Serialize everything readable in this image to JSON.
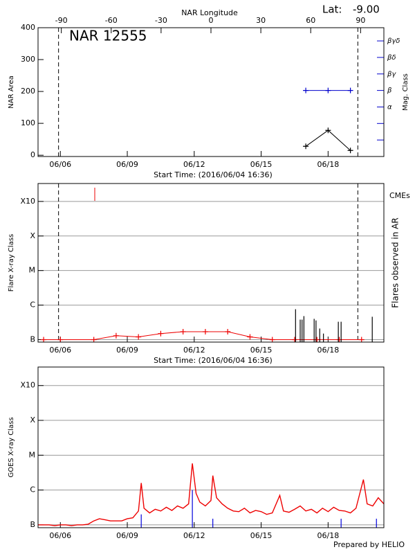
{
  "chart_data": [
    {
      "type": "line",
      "title": "NAR 12555",
      "latitude_label": "Lat:",
      "latitude": {
        "value": -9,
        "label": "-9.00"
      },
      "xlabel": "Start Time: (2016/06/04 16:36)",
      "ylabel": "NAR Area",
      "y2label": "Mag. Class",
      "x2label": "NAR Longitude",
      "xlim": [
        "06/05 00:00",
        "06/20 12:00"
      ],
      "xticks": [
        "06/06",
        "06/09",
        "06/12",
        "06/15",
        "06/18"
      ],
      "ylim": [
        -4,
        400
      ],
      "yticks": [
        0,
        100,
        200,
        300,
        400
      ],
      "y2lim": [
        0,
        7.8
      ],
      "y2ticks": [
        1,
        2,
        {
          "value": 3,
          "label": "α"
        },
        {
          "value": 4,
          "label": "β"
        },
        {
          "value": 5,
          "label": "βγ"
        },
        {
          "value": 6,
          "label": "βδ"
        },
        {
          "value": 7,
          "label": "βγδ"
        }
      ],
      "x2lim": [
        -104,
        104
      ],
      "x2ticks": [
        -90,
        -60,
        -30,
        0,
        30,
        60,
        90
      ],
      "limb_longitudes": [
        -90,
        90
      ],
      "series": [
        {
          "color": "#000000",
          "markers": true,
          "x": [
            "06/17",
            "06/18",
            "06/19"
          ],
          "values": [
            28,
            78,
            15
          ]
        },
        {
          "color": "#0000cc",
          "axis": "y2",
          "markers": true,
          "x": [
            "06/17",
            "06/18",
            "06/19"
          ],
          "values": [
            4,
            4,
            4
          ]
        }
      ]
    },
    {
      "type": "line",
      "xlabel": "Start Time: (2016/06/04 16:36)",
      "ylabel": "Flare X-ray Class",
      "y2label": "Flares observed in AR",
      "log": true,
      "grid": true,
      "legend": "right",
      "xlim": [
        "06/05 00:00",
        "06/20 12:00"
      ],
      "xticks": [
        "06/06",
        "06/09",
        "06/12",
        "06/15",
        "06/18"
      ],
      "ylim": [
        8.5e-08,
        0.0033
      ],
      "yticks": [
        {
          "value": 1e-07,
          "label": "B"
        },
        {
          "value": 1e-06,
          "label": "C"
        },
        {
          "value": 1e-05,
          "label": "M"
        },
        {
          "value": 0.0001,
          "label": "X"
        },
        {
          "value": 0.001,
          "label": "X10"
        }
      ],
      "series": [
        {
          "color": "#ee0000",
          "markers": true,
          "x": [
            "06/05 06:00",
            "06/06 00:00",
            "06/07 12:00",
            "06/08 12:00",
            "06/09 12:00",
            "06/10 12:00",
            "06/11 12:00",
            "06/12 12:00",
            "06/13 12:00",
            "06/14 12:00",
            "06/15 12:00",
            "06/16 12:00",
            "06/17 12:00",
            "06/18 12:00",
            "06/19 12:00"
          ],
          "values": [
            1e-07,
            1e-07,
            1e-07,
            1.3e-07,
            1.2e-07,
            1.5e-07,
            1.7e-07,
            1.7e-07,
            1.7e-07,
            1.2e-07,
            1e-07,
            1e-07,
            1e-07,
            1e-07,
            1e-07
          ]
        },
        {
          "color": "#000000",
          "style": "spike",
          "x": [
            "06/16 13:00",
            "06/16 18:00",
            "06/16 20:00",
            "06/16 22:00",
            "06/17 09:00",
            "06/17 11:00",
            "06/17 15:00",
            "06/17 19:00",
            "06/18 11:00",
            "06/18 14:00",
            "06/19 23:30"
          ],
          "values": [
            7.6e-07,
            3.8e-07,
            3.8e-07,
            4.8e-07,
            4e-07,
            3.6e-07,
            2.1e-07,
            1.5e-07,
            3.3e-07,
            3.3e-07,
            4.6e-07
          ]
        },
        {
          "name": "CMEs",
          "color": "#ee0000",
          "style": "event",
          "x": [
            "06/07 13:00"
          ]
        }
      ]
    },
    {
      "type": "line",
      "ylabel": "GOES X-ray Class",
      "log": true,
      "grid": true,
      "xlim": [
        "06/05 00:00",
        "06/20 12:00"
      ],
      "xticks": [
        "06/06",
        "06/09",
        "06/12",
        "06/15",
        "06/18"
      ],
      "ylim": [
        8.3e-08,
        0.0034
      ],
      "yticks": [
        {
          "value": 1e-07,
          "label": "B"
        },
        {
          "value": 1e-06,
          "label": "C"
        },
        {
          "value": 1e-05,
          "label": "M"
        },
        {
          "value": 0.0001,
          "label": "X"
        },
        {
          "value": 0.001,
          "label": "X10"
        }
      ],
      "series": [
        {
          "color": "#ee0000",
          "x": [
            "06/05 00:00",
            "06/05 06:00",
            "06/05 12:00",
            "06/05 18:00",
            "06/06 00:00",
            "06/06 06:00",
            "06/06 12:00",
            "06/06 18:00",
            "06/07 00:00",
            "06/07 06:00",
            "06/07 12:00",
            "06/07 18:00",
            "06/08 00:00",
            "06/08 06:00",
            "06/08 12:00",
            "06/08 18:00",
            "06/09 00:00",
            "06/09 06:00",
            "06/09 12:00",
            "06/09 15:00",
            "06/09 18:00",
            "06/10 00:00",
            "06/10 06:00",
            "06/10 12:00",
            "06/10 18:00",
            "06/11 00:00",
            "06/11 06:00",
            "06/11 12:00",
            "06/11 18:00",
            "06/11 22:00",
            "06/12 02:00",
            "06/12 06:00",
            "06/12 12:00",
            "06/12 18:00",
            "06/12 20:00",
            "06/13 00:00",
            "06/13 06:00",
            "06/13 12:00",
            "06/13 18:00",
            "06/14 00:00",
            "06/14 06:00",
            "06/14 12:00",
            "06/14 18:00",
            "06/15 00:00",
            "06/15 06:00",
            "06/15 12:00",
            "06/15 20:00",
            "06/16 00:00",
            "06/16 06:00",
            "06/16 12:00",
            "06/16 18:00",
            "06/17 00:00",
            "06/17 06:00",
            "06/17 12:00",
            "06/17 18:00",
            "06/18 00:00",
            "06/18 06:00",
            "06/18 12:00",
            "06/18 18:00",
            "06/19 00:00",
            "06/19 06:00",
            "06/19 14:00",
            "06/19 18:00",
            "06/20 00:00",
            "06/20 06:00",
            "06/20 12:00"
          ],
          "values": [
            1e-07,
            1e-07,
            1e-07,
            9.5e-08,
            1e-07,
            1e-07,
            9.5e-08,
            1e-07,
            1e-07,
            1.05e-07,
            1.3e-07,
            1.5e-07,
            1.4e-07,
            1.3e-07,
            1.3e-07,
            1.3e-07,
            1.5e-07,
            1.6e-07,
            2.5e-07,
            1.6e-06,
            3e-07,
            2.2e-07,
            2.8e-07,
            2.5e-07,
            3.2e-07,
            2.6e-07,
            3.5e-07,
            3e-07,
            4e-07,
            5.8e-06,
            8e-07,
            4.5e-07,
            3.5e-07,
            5e-07,
            2.6e-06,
            6e-07,
            4e-07,
            3e-07,
            2.5e-07,
            2.4e-07,
            3e-07,
            2.2e-07,
            2.6e-07,
            2.4e-07,
            2e-07,
            2.2e-07,
            7e-07,
            2.5e-07,
            2.3e-07,
            2.8e-07,
            3.5e-07,
            2.5e-07,
            2.8e-07,
            2.2e-07,
            3e-07,
            2.4e-07,
            3.2e-07,
            2.6e-07,
            2.5e-07,
            2.2e-07,
            3e-07,
            2e-06,
            4e-07,
            3.5e-07,
            6e-07,
            4e-07
          ]
        },
        {
          "color": "#0000dd",
          "style": "spike",
          "x": [
            "06/09 15:00",
            "06/11 22:00",
            "06/12 20:00",
            "06/18 14:00",
            "06/20 04:00"
          ],
          "values": [
            2e-07,
            1e-06,
            1.5e-07,
            1.5e-07,
            1.5e-07
          ]
        }
      ]
    }
  ],
  "credit": "Prepared by HELIO"
}
